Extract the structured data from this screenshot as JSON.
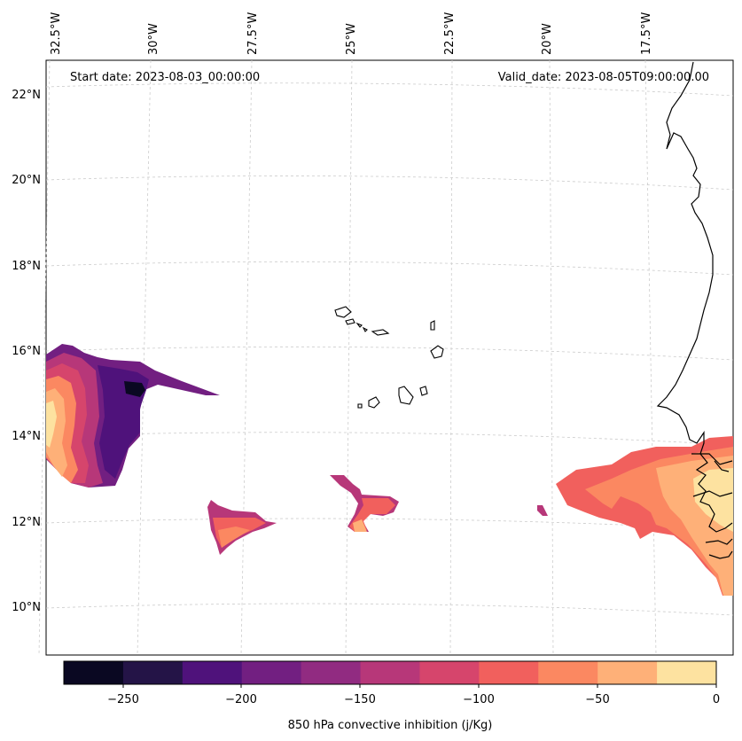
{
  "header": {
    "start_date": "Start date: 2023-08-03_00:00:00",
    "valid_date": "Valid_date: 2023-08-05T09:00:00.00"
  },
  "lon_labels": [
    "32.5°W",
    "30°W",
    "27.5°W",
    "25°W",
    "22.5°W",
    "20°W",
    "17.5°W"
  ],
  "lat_labels": [
    "22°N",
    "20°N",
    "18°N",
    "16°N",
    "14°N",
    "12°N",
    "10°N"
  ],
  "colorbar": {
    "label": "850 hPa convective inhibition (j/Kg)",
    "ticks": [
      "−250",
      "−200",
      "−150",
      "−100",
      "−50",
      "0"
    ],
    "levels": [
      -275,
      -250,
      -225,
      -200,
      -175,
      -150,
      -125,
      -100,
      -75,
      -50,
      -25,
      0
    ],
    "colors": [
      "#0a0822",
      "#241447",
      "#4f127b",
      "#721f81",
      "#912b81",
      "#b73779",
      "#d6456c",
      "#f1605d",
      "#fb8861",
      "#feb078",
      "#fde2a0"
    ],
    "colormap": "magma"
  },
  "map": {
    "projection": "lambert-like conic",
    "gridlines": true,
    "coastline_color": "#000000"
  }
}
